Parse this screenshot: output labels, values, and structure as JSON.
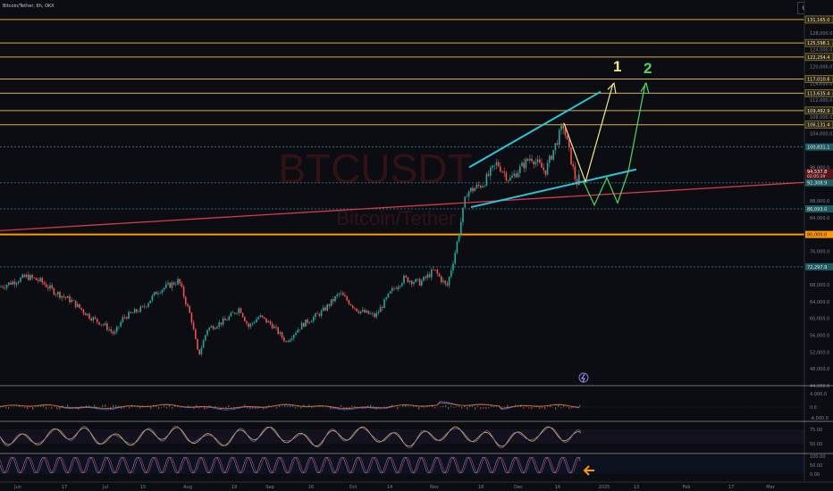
{
  "header": {
    "symbol_text": "Bitcoin/Tether, 6h, OKX",
    "currency": "USDT"
  },
  "watermark": {
    "ticker": "BTCUSDT",
    "name": "Bitcoin/Tether"
  },
  "colors": {
    "background": "#0b0d12",
    "candle_up": "#26a69a",
    "candle_down": "#ef5350",
    "level_line": "#d4b13c",
    "dashed_level": "#2a6f77",
    "trendline_red": "#d63a4a",
    "orange_level": "#ff9800",
    "channel": "#29c6da",
    "path_yellow": "#f7e68a",
    "path_green": "#4cd964",
    "rsi_yellow": "#e0b43a",
    "stoch_purple": "#8a7ae8"
  },
  "annotations": {
    "label_1": "1",
    "label_2": "2",
    "arrow_icon": "left-arrow-icon",
    "lightning_icon": "lightning-icon"
  },
  "chart_data": {
    "type": "candlestick",
    "title": "Bitcoin/Tether, 6h, OKX",
    "y_scale": "linear",
    "ylim": [
      44000,
      132000
    ],
    "y_ticks": [
      {
        "value": 128000,
        "label": "128,000.0"
      },
      {
        "value": 124000,
        "label": "124,000.0"
      },
      {
        "value": 120000,
        "label": "120,000.0"
      },
      {
        "value": 116000,
        "label": "116,000.0"
      },
      {
        "value": 112000,
        "label": "112,000.0"
      },
      {
        "value": 108000,
        "label": "108,000.0"
      },
      {
        "value": 104000,
        "label": "104,000.0"
      },
      {
        "value": 96000,
        "label": "96,000.0"
      },
      {
        "value": 88000,
        "label": "88,000.0"
      },
      {
        "value": 84000,
        "label": "84,000.0"
      },
      {
        "value": 76000,
        "label": "76,000.0"
      },
      {
        "value": 72000,
        "label": "72,000.0"
      },
      {
        "value": 68000,
        "label": "68,000.0"
      },
      {
        "value": 64000,
        "label": "64,000.0"
      },
      {
        "value": 60000,
        "label": "60,000.0"
      },
      {
        "value": 56000,
        "label": "56,000.0"
      },
      {
        "value": 52000,
        "label": "52,000.0"
      },
      {
        "value": 48000,
        "label": "48,000.0"
      },
      {
        "value": 44000,
        "label": "44,000.0"
      }
    ],
    "price_levels": [
      {
        "value": 131165,
        "label": "131,165.0",
        "style": "solid-gold"
      },
      {
        "value": 125598.1,
        "label": "125,598.1",
        "style": "solid-gold"
      },
      {
        "value": 122254.4,
        "label": "122,254.4",
        "style": "solid-gold"
      },
      {
        "value": 117010.6,
        "label": "117,010.6",
        "style": "solid-gold"
      },
      {
        "value": 113635.4,
        "label": "113,635.4",
        "style": "solid-gold"
      },
      {
        "value": 109492.9,
        "label": "109,492.9",
        "style": "solid-gold"
      },
      {
        "value": 106131.4,
        "label": "106,131.4",
        "style": "solid-gold"
      },
      {
        "value": 100831.1,
        "label": "100,831.1",
        "style": "dashed-teal"
      },
      {
        "value": 92308.9,
        "label": "92,308.9",
        "style": "dashed-teal"
      },
      {
        "value": 86093.0,
        "label": "86,093.0",
        "style": "dashed-teal"
      },
      {
        "value": 80000.0,
        "label": "80,000.0",
        "style": "solid-orange"
      },
      {
        "value": 72297.9,
        "label": "72,297.9",
        "style": "dashed-teal"
      }
    ],
    "current_price": {
      "value": 94537.8,
      "label": "94,537.8",
      "countdown": "02:05:29"
    },
    "x_ticks": [
      "Jun",
      "17",
      "Jul",
      "15",
      "Aug",
      "19",
      "Sep",
      "16",
      "Oct",
      "14",
      "Nov",
      "18",
      "Dec",
      "16",
      "2025",
      "13",
      "Feb",
      "17",
      "Mar"
    ],
    "price_series": [
      [
        "Jun",
        67500
      ],
      [
        "17",
        67000
      ],
      [
        "Jul",
        58500
      ],
      [
        "15",
        63500
      ],
      [
        "Aug",
        65000
      ],
      [
        "Aug",
        50500
      ],
      [
        "19",
        59000
      ],
      [
        "Sep",
        58500
      ],
      [
        "Sep",
        54500
      ],
      [
        "16",
        59000
      ],
      [
        "Oct",
        62500
      ],
      [
        "Oct",
        61500
      ],
      [
        "14",
        66500
      ],
      [
        "Nov",
        71000
      ],
      [
        "Nov",
        69500
      ],
      [
        "Nov",
        76500
      ],
      [
        "18",
        91500
      ],
      [
        "Dec",
        97000
      ],
      [
        "Dec",
        98500
      ],
      [
        "16",
        106000
      ],
      [
        "16",
        94500
      ]
    ],
    "projected_paths": [
      {
        "label": "1",
        "points": [
          [
            106000
          ],
          [
            92500
          ],
          [
            116000
          ]
        ]
      },
      {
        "label": "2",
        "points": [
          [
            92500
          ],
          [
            87000
          ],
          [
            93500
          ],
          [
            87500
          ],
          [
            95000
          ],
          [
            116000
          ]
        ]
      }
    ],
    "indicators": [
      {
        "name": "macd",
        "ticks": [
          "4,000.0",
          "0.0",
          "-4,000.0"
        ]
      },
      {
        "name": "rsi",
        "ticks": [
          "75.00",
          "50.00"
        ]
      },
      {
        "name": "stoch",
        "ticks": [
          "100.00",
          "50.00",
          "0.00"
        ]
      }
    ],
    "xlabel": "",
    "ylabel": ""
  }
}
